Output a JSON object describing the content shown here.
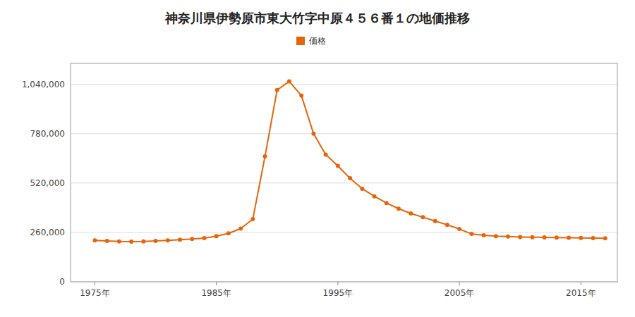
{
  "chart_data": {
    "type": "line",
    "title": "神奈川県伊勢原市東大竹字中原４５６番１の地価推移",
    "x": [
      1975,
      1976,
      1977,
      1978,
      1979,
      1980,
      1981,
      1982,
      1983,
      1984,
      1985,
      1986,
      1987,
      1988,
      1989,
      1990,
      1991,
      1992,
      1993,
      1994,
      1995,
      1996,
      1997,
      1998,
      1999,
      2000,
      2001,
      2002,
      2003,
      2004,
      2005,
      2006,
      2007,
      2008,
      2009,
      2010,
      2011,
      2012,
      2013,
      2014,
      2015,
      2016,
      2017
    ],
    "series": [
      {
        "name": "価格",
        "color": "#e8640a",
        "marker": "circle",
        "values": [
          218000,
          215000,
          212000,
          211000,
          212000,
          215000,
          218000,
          222000,
          225000,
          230000,
          240000,
          255000,
          280000,
          330000,
          660000,
          1010000,
          1055000,
          980000,
          780000,
          670000,
          610000,
          545000,
          490000,
          450000,
          415000,
          385000,
          360000,
          340000,
          320000,
          300000,
          278000,
          252000,
          245000,
          240000,
          238000,
          236000,
          235000,
          234000,
          233000,
          232000,
          231000,
          230000,
          229000
        ]
      }
    ],
    "xlim": [
      1973,
      2018
    ],
    "xticks": [
      {
        "value": 1975,
        "label": "1975年"
      },
      {
        "value": 1985,
        "label": "1985年"
      },
      {
        "value": 1995,
        "label": "1995年"
      },
      {
        "value": 2005,
        "label": "2005年"
      },
      {
        "value": 2015,
        "label": "2015年"
      }
    ],
    "ylim": [
      0,
      1150000
    ],
    "yticks": [
      0,
      {
        "value": 260000,
        "label": "260,000"
      },
      {
        "value": 520000,
        "label": "520,000"
      },
      {
        "value": 780000,
        "label": "780,000"
      },
      {
        "value": 1040000,
        "label": "1,040,000"
      }
    ],
    "grid": true,
    "legend": "top"
  }
}
